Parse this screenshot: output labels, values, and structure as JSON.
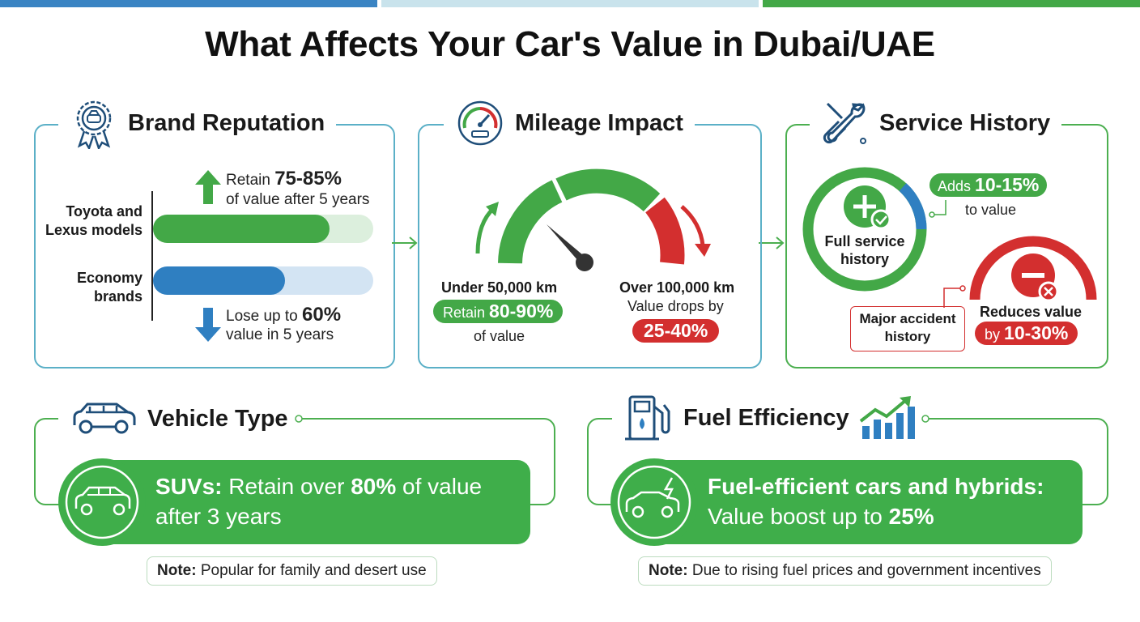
{
  "title": "What Affects Your Car's Value in Dubai/UAE",
  "colors": {
    "green": "#43a847",
    "blue": "#2f7fc1",
    "red": "#d32f2f",
    "teal": "#5bb0c7",
    "dark": "#1a1a1a"
  },
  "brand": {
    "heading": "Brand Reputation",
    "icon": "award-ribbon-icon",
    "retain_text": "Retain",
    "retain_value": "75-85%",
    "retain_suffix": "of value after 5 years",
    "toyota_line1": "Toyota and",
    "toyota_line2": "Lexus models",
    "economy_line1": "Economy",
    "economy_line2": "brands",
    "lose_text": "Lose up to",
    "lose_value": "60%",
    "lose_suffix": "value in 5 years",
    "toyota_fill": 0.8,
    "economy_fill": 0.6
  },
  "mileage": {
    "heading": "Mileage Impact",
    "icon": "speedometer-icon",
    "low_label": "Under 50,000 km",
    "low_retain_text": "Retain",
    "low_retain_value": "80-90%",
    "low_suffix": "of value",
    "high_label": "Over 100,000 km",
    "high_text": "Value drops by",
    "high_value": "25-40%"
  },
  "service": {
    "heading": "Service History",
    "icon": "wrench-screwdriver-icon",
    "full_line1": "Full service",
    "full_line2": "history",
    "adds_text": "Adds",
    "adds_value": "10-15%",
    "adds_suffix": "to value",
    "accident_line1": "Major accident",
    "accident_line2": "history",
    "reduces_line1": "Reduces value",
    "reduces_by": "by",
    "reduces_value": "10-30%"
  },
  "vehicle": {
    "heading": "Vehicle Type",
    "icon": "suv-car-icon",
    "suvs_label": "SUVs:",
    "retain_text": "Retain over",
    "retain_value": "80%",
    "retain_suffix": "of value",
    "line2": "after 3 years",
    "note_label": "Note:",
    "note_text": "Popular for family and desert use"
  },
  "fuel": {
    "heading": "Fuel Efficiency",
    "icon": "fuel-pump-icon",
    "line1": "Fuel-efficient cars and hybrids:",
    "line2_text": "Value boost up to",
    "line2_value": "25%",
    "note_label": "Note:",
    "note_text": "Due to rising fuel prices and government incentives"
  }
}
